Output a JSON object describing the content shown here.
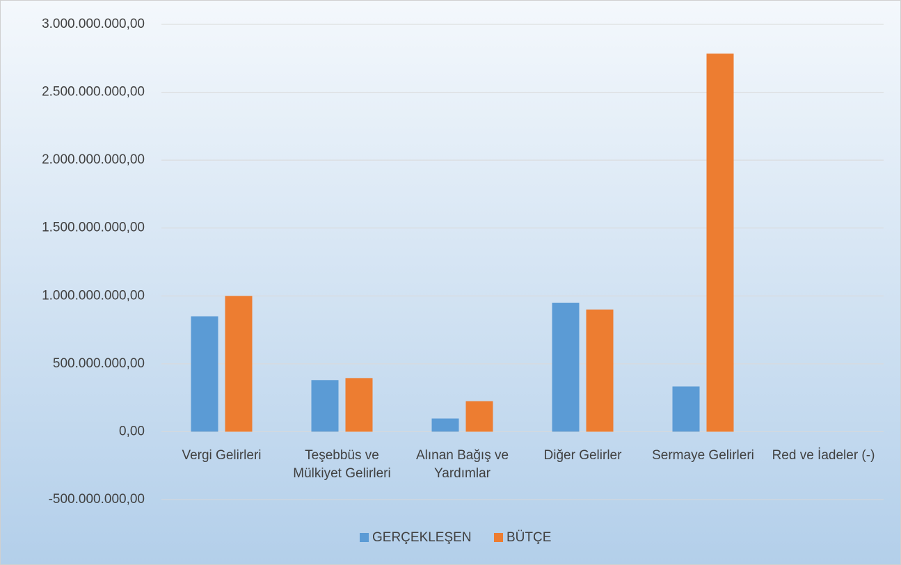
{
  "chart_data": {
    "type": "bar",
    "categories": [
      "Vergi Gelirleri",
      "Teşebbüs ve Mülkiyet Gelirleri",
      "Alınan Bağış ve Yardımlar",
      "Diğer Gelirler",
      "Sermaye Gelirleri",
      "Red ve İadeler (-)"
    ],
    "series": [
      {
        "name": "GERÇEKLEŞEN",
        "color": "#5b9bd5",
        "values": [
          850000000,
          380000000,
          97000000,
          950000000,
          333000000,
          0
        ]
      },
      {
        "name": "BÜTÇE",
        "color": "#ed7d31",
        "values": [
          1000000000,
          395000000,
          225000000,
          900000000,
          2785000000,
          0
        ]
      }
    ],
    "ylim": [
      -500000000,
      3000000000
    ],
    "yticks": [
      {
        "value": -500000000,
        "label": "-500.000.000,00"
      },
      {
        "value": 0,
        "label": "0,00"
      },
      {
        "value": 500000000,
        "label": "500.000.000,00"
      },
      {
        "value": 1000000000,
        "label": "1.000.000.000,00"
      },
      {
        "value": 1500000000,
        "label": "1.500.000.000,00"
      },
      {
        "value": 2000000000,
        "label": "2.000.000.000,00"
      },
      {
        "value": 2500000000,
        "label": "2.500.000.000,00"
      },
      {
        "value": 3000000000,
        "label": "3.000.000.000,00"
      }
    ],
    "grid": true,
    "legend": "bottom"
  }
}
